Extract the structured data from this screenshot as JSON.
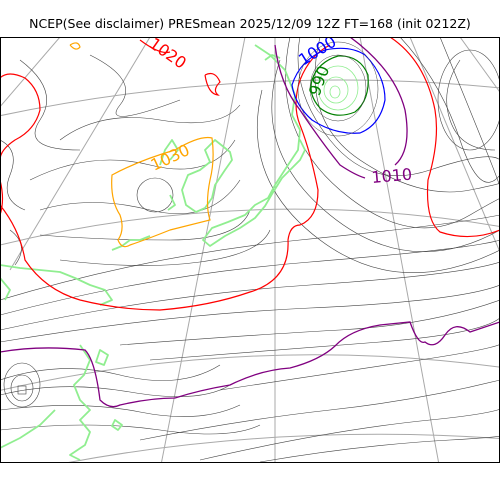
{
  "header": {
    "title": "NCEP(See disclaimer) PRESmean 2025/12/09 12Z FT=168 (init 0212Z)"
  },
  "map": {
    "contour_labels": [
      {
        "text": "1000",
        "color": "#0000ff",
        "rotate": -32
      },
      {
        "text": "990",
        "color": "#008000",
        "rotate": -70
      },
      {
        "text": "1030",
        "color": "#ffa500",
        "rotate": -25
      },
      {
        "text": "1010",
        "color": "#800080",
        "rotate": -5
      },
      {
        "text": "1020",
        "color": "#ff0000",
        "rotate": 35
      }
    ],
    "colors": {
      "coast": "#90ee90",
      "grid": "#a9a9a9",
      "isobar": "#444444",
      "c1000": "#0000ff",
      "c990": "#008000",
      "c1030": "#ffa500",
      "c1010": "#800080",
      "c1020": "#ff0000"
    }
  }
}
